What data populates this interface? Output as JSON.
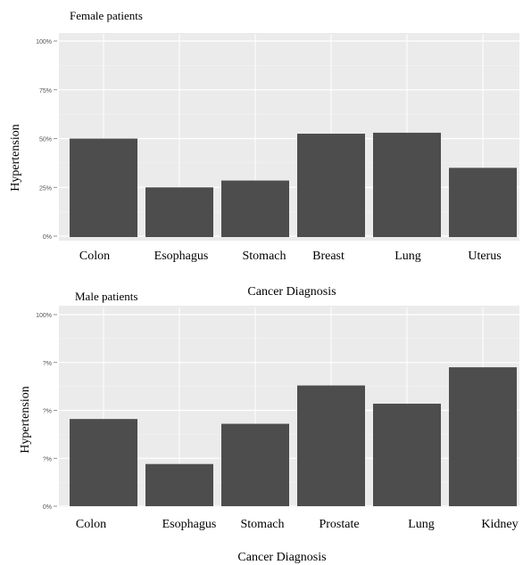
{
  "chart_data": [
    {
      "type": "bar",
      "title": "Female patients",
      "xlabel": "Cancer Diagnosis",
      "ylabel": "Hypertension",
      "categories": [
        "Colon",
        "Esophagus",
        "Stomach",
        "Breast",
        "Lung",
        "Uterus"
      ],
      "values": [
        0.5,
        0.25,
        0.285,
        0.525,
        0.53,
        0.35
      ],
      "ylim": [
        0,
        1
      ],
      "yticks": [
        "0%",
        "25%",
        "50%",
        "75%",
        "100%"
      ],
      "grid": true,
      "bar_color": "#4d4d4d",
      "panel_color": "#ebebeb"
    },
    {
      "type": "bar",
      "title": "Male patients",
      "xlabel": "Cancer Diagnosis",
      "ylabel": "Hypertension",
      "categories": [
        "Colon",
        "Esophagus",
        "Stomach",
        "Prostate",
        "Lung",
        "Kidney"
      ],
      "values": [
        0.455,
        0.22,
        0.43,
        0.63,
        0.535,
        0.725
      ],
      "ylim": [
        0,
        1
      ],
      "yticks": [
        "0%",
        "?%",
        "?%",
        "?%",
        "100%"
      ],
      "grid": true,
      "bar_color": "#4d4d4d",
      "panel_color": "#ebebeb"
    }
  ]
}
